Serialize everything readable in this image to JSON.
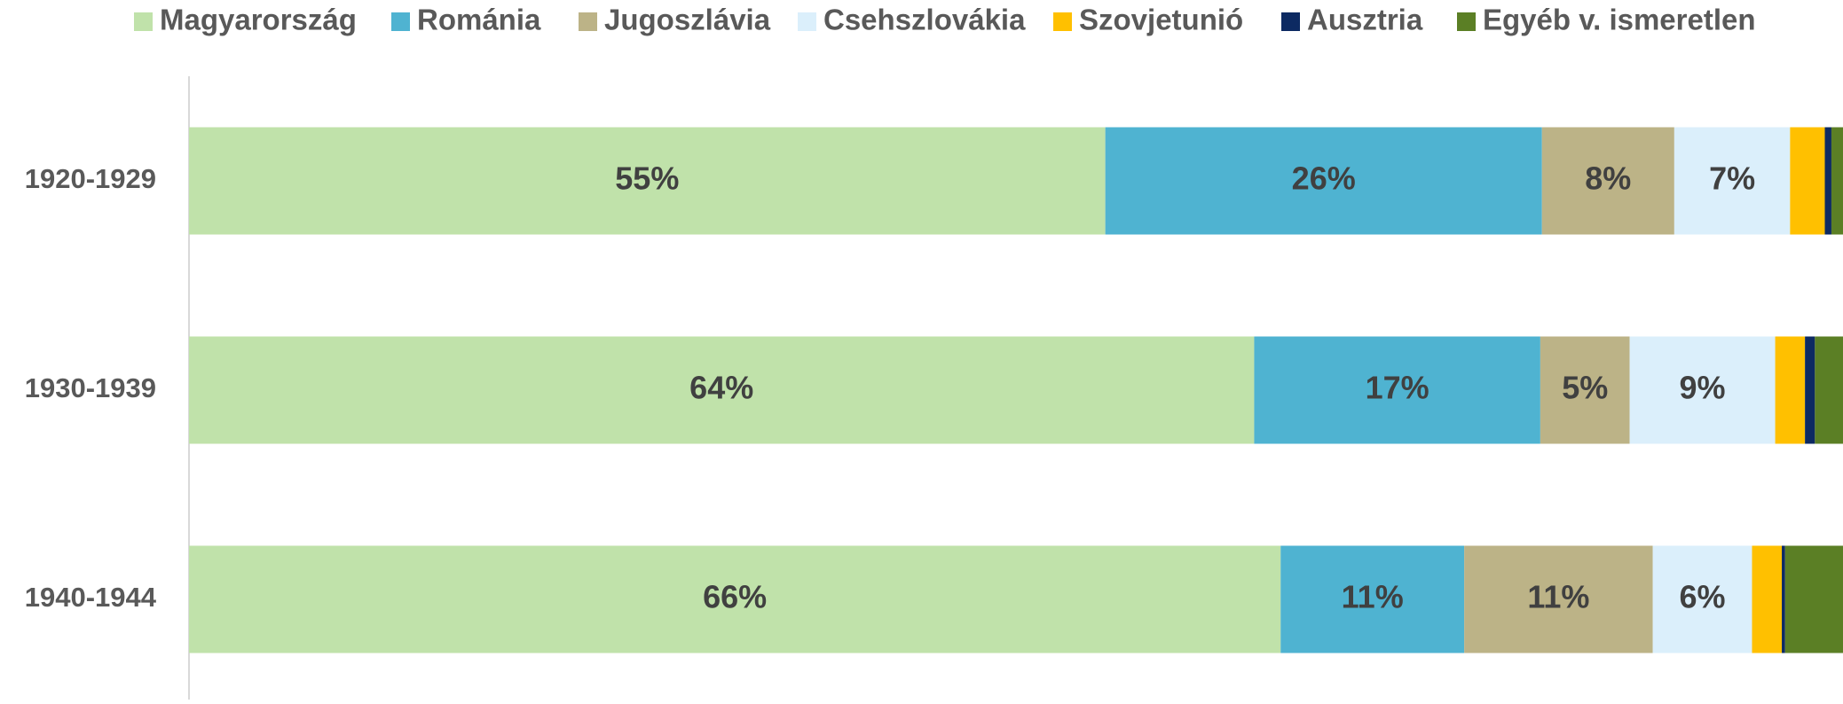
{
  "chart_data": {
    "type": "stacked_bar_horizontal",
    "categories": [
      "1920-1929",
      "1930-1939",
      "1940-1944"
    ],
    "xlim": [
      0,
      100
    ],
    "legend": "top",
    "series": [
      {
        "name": "Magyarország",
        "color": "#c0e2aa",
        "values": [
          55.4,
          64.4,
          66.0
        ],
        "value_labels": [
          "55%",
          "64%",
          "66%"
        ]
      },
      {
        "name": "Románia",
        "color": "#4fb3d1",
        "values": [
          26.4,
          17.3,
          11.1
        ],
        "value_labels": [
          "26%",
          "17%",
          "11%"
        ]
      },
      {
        "name": "Jugoszlávia",
        "color": "#bcb387",
        "values": [
          8.0,
          5.4,
          11.4
        ],
        "value_labels": [
          "8%",
          "5%",
          "11%"
        ]
      },
      {
        "name": "Csehszlovákia",
        "color": "#dbeffb",
        "values": [
          7.0,
          8.8,
          6.0
        ],
        "value_labels": [
          "7%",
          "9%",
          "6%"
        ]
      },
      {
        "name": "Szovjetunió",
        "color": "#ffc000",
        "values": [
          2.1,
          1.8,
          1.8
        ]
      },
      {
        "name": "Ausztria",
        "color": "#0d2a62",
        "values": [
          0.4,
          0.6,
          0.2
        ]
      },
      {
        "name": "Egyéb v. ismeretlen",
        "color": "#5b7f25",
        "values": [
          0.7,
          1.7,
          3.5
        ]
      }
    ]
  }
}
